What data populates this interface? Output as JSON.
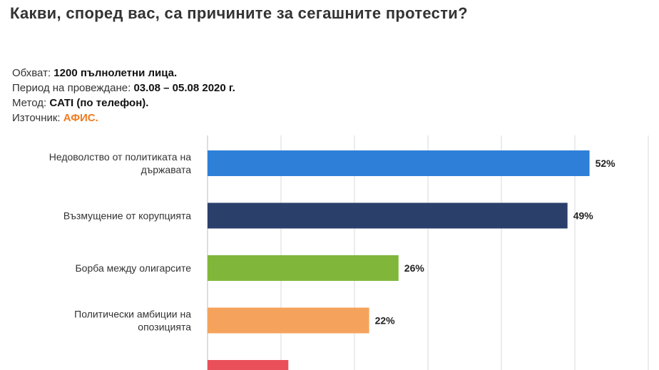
{
  "title": "Какви, според вас, са причините за сегашните протести?",
  "meta": {
    "scope_label": "Обхват:",
    "scope_value": "1200 пълнолетни лица.",
    "period_label": "Период на провеждане:",
    "period_value": "03.08 – 05.08 2020 г.",
    "method_label": "Метод:",
    "method_value": "CATI (по телефон).",
    "source_label": "Източник:",
    "source_value": "АФИС."
  },
  "colors": {
    "source": "#f07a1e",
    "bars": [
      "#2e7fd8",
      "#2b3f6b",
      "#80b73b",
      "#f5a35c",
      "#e9505a"
    ]
  },
  "chart_data": {
    "type": "bar",
    "orientation": "horizontal",
    "categories": [
      [
        "Недоволство от политиката на",
        "държавата"
      ],
      [
        "Възмущение от корупцията"
      ],
      [
        "Борба между олигарсите"
      ],
      [
        "Политически амбиции на",
        "опозицията"
      ],
      [
        ""
      ]
    ],
    "values": [
      52,
      49,
      26,
      22,
      11
    ],
    "data_labels": [
      "52%",
      "49%",
      "26%",
      "22%",
      ""
    ],
    "xlim": [
      0,
      60
    ],
    "grid": true,
    "legend": "none",
    "xlabel": "",
    "ylabel": ""
  }
}
